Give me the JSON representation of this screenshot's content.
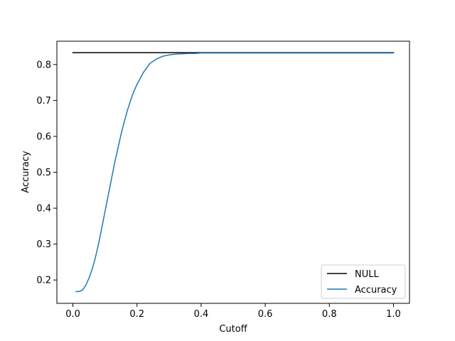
{
  "chart_data": {
    "type": "line",
    "title": "",
    "xlabel": "Cutoff",
    "ylabel": "Accuracy",
    "xlim": [
      -0.05,
      1.05
    ],
    "ylim": [
      0.135,
      0.865
    ],
    "xticks": [
      0.0,
      0.2,
      0.4,
      0.6,
      0.8,
      1.0
    ],
    "xtick_labels": [
      "0.0",
      "0.2",
      "0.4",
      "0.6",
      "0.8",
      "1.0"
    ],
    "yticks": [
      0.2,
      0.3,
      0.4,
      0.5,
      0.6,
      0.7,
      0.8
    ],
    "ytick_labels": [
      "0.2",
      "0.3",
      "0.4",
      "0.5",
      "0.6",
      "0.7",
      "0.8"
    ],
    "grid": false,
    "legend_position": "lower-right",
    "series": [
      {
        "name": "NULL",
        "color": "#000000",
        "x": [
          0.0,
          1.0
        ],
        "y": [
          0.833,
          0.833
        ]
      },
      {
        "name": "Accuracy",
        "color": "#1f77b4",
        "x": [
          0.01,
          0.02,
          0.03,
          0.04,
          0.05,
          0.06,
          0.07,
          0.08,
          0.09,
          0.1,
          0.11,
          0.12,
          0.13,
          0.14,
          0.15,
          0.16,
          0.17,
          0.18,
          0.19,
          0.2,
          0.22,
          0.24,
          0.26,
          0.28,
          0.3,
          0.32,
          0.34,
          0.36,
          0.38,
          0.4,
          0.43,
          0.46,
          0.5,
          0.6,
          0.7,
          0.8,
          0.9,
          1.0
        ],
        "y": [
          0.168,
          0.168,
          0.172,
          0.185,
          0.205,
          0.23,
          0.262,
          0.3,
          0.345,
          0.39,
          0.435,
          0.48,
          0.525,
          0.565,
          0.605,
          0.64,
          0.672,
          0.7,
          0.725,
          0.745,
          0.778,
          0.803,
          0.815,
          0.823,
          0.827,
          0.829,
          0.83,
          0.831,
          0.831,
          0.832,
          0.832,
          0.832,
          0.832,
          0.832,
          0.832,
          0.832,
          0.832,
          0.832
        ]
      }
    ]
  }
}
